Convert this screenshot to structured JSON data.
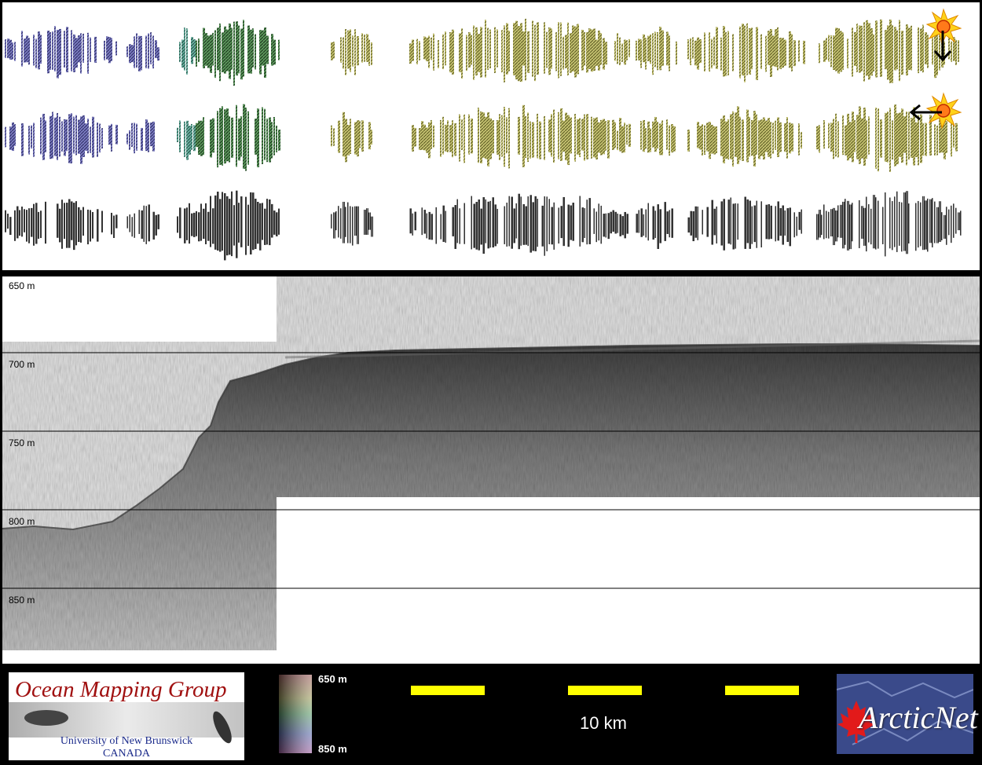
{
  "profile": {
    "depth_labels": [
      "650 m",
      "700 m",
      "750 m",
      "800 m",
      "850 m"
    ]
  },
  "colorbar": {
    "top_label": "650 m",
    "bottom_label": "850 m"
  },
  "scalebar": {
    "label": "10 km",
    "segment_colors": [
      "#ffff00",
      "#000000"
    ]
  },
  "omg_logo": {
    "title": "Ocean Mapping Group",
    "line1": "University of New Brunswick",
    "line2": "CANADA"
  },
  "arcticnet_logo": {
    "text": "ArcticNet"
  },
  "colors": {
    "swath_blue": "#6a6ab0",
    "swath_green": "#4a8a5a",
    "swath_olive": "#b7b45c",
    "omg_red": "#a01010",
    "omg_blue": "#1a2a8a",
    "arctic_blue": "#2a3a7a",
    "maple_red": "#e21a1a"
  },
  "icons": [
    "sun-icon",
    "arrow-down-icon",
    "arrow-left-icon",
    "maple-leaf-icon"
  ]
}
